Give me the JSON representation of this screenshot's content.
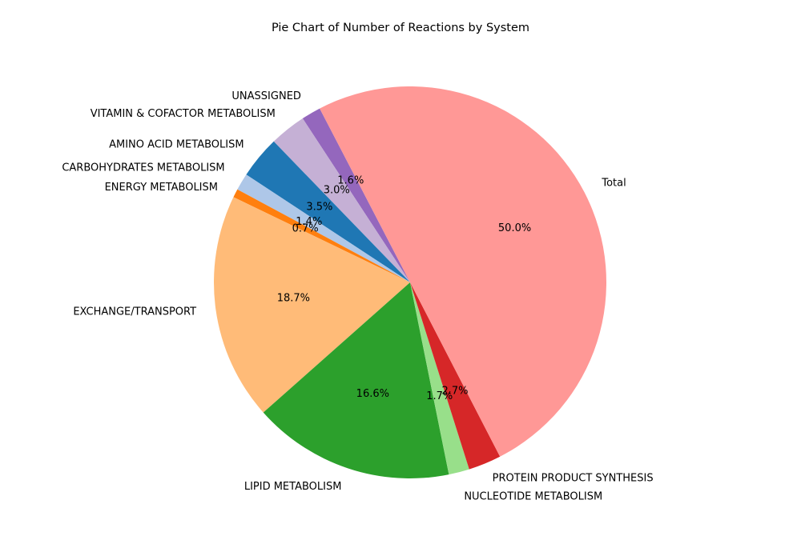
{
  "chart_data": {
    "type": "pie",
    "title": "Pie Chart of Number of Reactions by System",
    "start_angle_deg": 117.44,
    "direction": "counterclockwise",
    "slices": [
      {
        "label": "UNASSIGNED",
        "value": 1.6,
        "pct_label": "1.6%",
        "color": "#9467bd"
      },
      {
        "label": "VITAMIN & COFACTOR METABOLISM",
        "value": 3.0,
        "pct_label": "3.0%",
        "color": "#c5b0d5"
      },
      {
        "label": "AMINO ACID METABOLISM",
        "value": 3.5,
        "pct_label": "3.5%",
        "color": "#1f77b4"
      },
      {
        "label": "CARBOHYDRATES METABOLISM",
        "value": 1.4,
        "pct_label": "1.4%",
        "color": "#aec7e8"
      },
      {
        "label": "ENERGY METABOLISM",
        "value": 0.7,
        "pct_label": "0.7%",
        "color": "#ff7f0e"
      },
      {
        "label": "EXCHANGE/TRANSPORT",
        "value": 18.7,
        "pct_label": "18.7%",
        "color": "#ffbb78"
      },
      {
        "label": "LIPID METABOLISM",
        "value": 16.6,
        "pct_label": "16.6%",
        "color": "#2ca02c"
      },
      {
        "label": "NUCLEOTIDE METABOLISM",
        "value": 1.7,
        "pct_label": "1.7%",
        "color": "#98df8a"
      },
      {
        "label": "PROTEIN PRODUCT SYNTHESIS",
        "value": 2.7,
        "pct_label": "2.7%",
        "color": "#d62728"
      },
      {
        "label": "Total",
        "value": 50.0,
        "pct_label": "50.0%",
        "color": "#ff9896"
      }
    ]
  }
}
